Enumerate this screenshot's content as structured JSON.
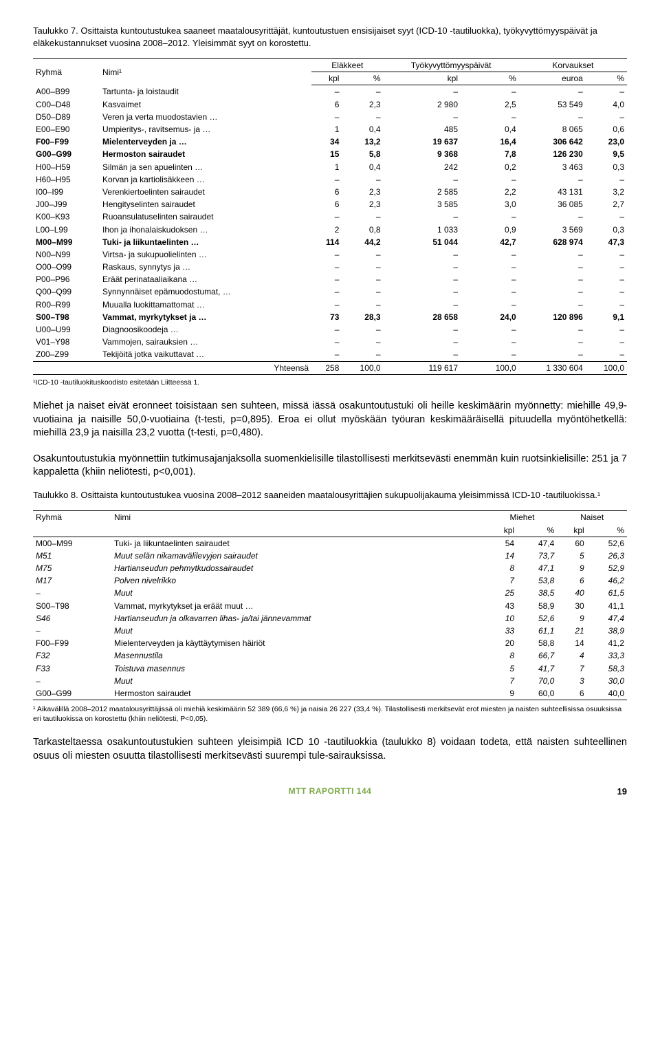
{
  "table7": {
    "caption": "Taulukko 7. Osittaista kuntoutustukea saaneet maatalousyrittäjät, kuntoutustuen ensisijaiset syyt (ICD-10 -tautiluokka), työkyvyttömyyspäivät ja eläkekustannukset vuosina 2008–2012. Yleisimmät syyt on korostettu.",
    "col_groups": [
      "Eläkkeet",
      "Työkyvyttömyyspäivät",
      "Korvaukset"
    ],
    "sub_cols": [
      "Ryhmä",
      "Nimi¹",
      "kpl",
      "%",
      "kpl",
      "%",
      "euroa",
      "%"
    ],
    "rows": [
      {
        "code": "A00–B99",
        "name": "Tartunta- ja loistaudit",
        "v": [
          "–",
          "–",
          "–",
          "–",
          "–",
          "–"
        ],
        "bold": false
      },
      {
        "code": "C00–D48",
        "name": "Kasvaimet",
        "v": [
          "6",
          "2,3",
          "2 980",
          "2,5",
          "53 549",
          "4,0"
        ],
        "bold": false
      },
      {
        "code": "D50–D89",
        "name": "Veren ja verta muodostavien …",
        "v": [
          "–",
          "–",
          "–",
          "–",
          "–",
          "–"
        ],
        "bold": false
      },
      {
        "code": "E00–E90",
        "name": "Umpieritys-, ravitsemus- ja …",
        "v": [
          "1",
          "0,4",
          "485",
          "0,4",
          "8 065",
          "0,6"
        ],
        "bold": false
      },
      {
        "code": "F00–F99",
        "name": "Mielenterveyden ja …",
        "v": [
          "34",
          "13,2",
          "19 637",
          "16,4",
          "306 642",
          "23,0"
        ],
        "bold": true
      },
      {
        "code": "G00–G99",
        "name": "Hermoston sairaudet",
        "v": [
          "15",
          "5,8",
          "9 368",
          "7,8",
          "126 230",
          "9,5"
        ],
        "bold": true
      },
      {
        "code": "H00–H59",
        "name": "Silmän ja sen apuelinten …",
        "v": [
          "1",
          "0,4",
          "242",
          "0,2",
          "3 463",
          "0,3"
        ],
        "bold": false
      },
      {
        "code": "H60–H95",
        "name": "Korvan ja kartiolisäkkeen …",
        "v": [
          "–",
          "–",
          "–",
          "–",
          "–",
          "–"
        ],
        "bold": false
      },
      {
        "code": "I00–I99",
        "name": "Verenkiertoelinten sairaudet",
        "v": [
          "6",
          "2,3",
          "2 585",
          "2,2",
          "43 131",
          "3,2"
        ],
        "bold": false
      },
      {
        "code": "J00–J99",
        "name": "Hengityselinten sairaudet",
        "v": [
          "6",
          "2,3",
          "3 585",
          "3,0",
          "36 085",
          "2,7"
        ],
        "bold": false
      },
      {
        "code": "K00–K93",
        "name": "Ruoansulatuselinten sairaudet",
        "v": [
          "–",
          "–",
          "–",
          "–",
          "–",
          "–"
        ],
        "bold": false
      },
      {
        "code": "L00–L99",
        "name": "Ihon ja ihonalaiskudoksen …",
        "v": [
          "2",
          "0,8",
          "1 033",
          "0,9",
          "3 569",
          "0,3"
        ],
        "bold": false
      },
      {
        "code": "M00–M99",
        "name": "Tuki- ja liikuntaelinten …",
        "v": [
          "114",
          "44,2",
          "51 044",
          "42,7",
          "628 974",
          "47,3"
        ],
        "bold": true
      },
      {
        "code": "N00–N99",
        "name": "Virtsa- ja sukupuolielinten …",
        "v": [
          "–",
          "–",
          "–",
          "–",
          "–",
          "–"
        ],
        "bold": false
      },
      {
        "code": "O00–O99",
        "name": "Raskaus, synnytys ja …",
        "v": [
          "–",
          "–",
          "–",
          "–",
          "–",
          "–"
        ],
        "bold": false
      },
      {
        "code": "P00–P96",
        "name": "Eräät perinataaliaikana …",
        "v": [
          "–",
          "–",
          "–",
          "–",
          "–",
          "–"
        ],
        "bold": false
      },
      {
        "code": "Q00–Q99",
        "name": "Synnynnäiset epämuodostumat, …",
        "v": [
          "–",
          "–",
          "–",
          "–",
          "–",
          "–"
        ],
        "bold": false
      },
      {
        "code": "R00–R99",
        "name": "Muualla luokittamattomat …",
        "v": [
          "–",
          "–",
          "–",
          "–",
          "–",
          "–"
        ],
        "bold": false
      },
      {
        "code": "S00–T98",
        "name": "Vammat, myrkytykset ja …",
        "v": [
          "73",
          "28,3",
          "28 658",
          "24,0",
          "120 896",
          "9,1"
        ],
        "bold": true
      },
      {
        "code": "U00–U99",
        "name": "Diagnoosikoodeja …",
        "v": [
          "–",
          "–",
          "–",
          "–",
          "–",
          "–"
        ],
        "bold": false
      },
      {
        "code": "V01–Y98",
        "name": "Vammojen, sairauksien …",
        "v": [
          "–",
          "–",
          "–",
          "–",
          "–",
          "–"
        ],
        "bold": false
      },
      {
        "code": "Z00–Z99",
        "name": "Tekijöitä jotka vaikuttavat …",
        "v": [
          "–",
          "–",
          "–",
          "–",
          "–",
          "–"
        ],
        "bold": false
      }
    ],
    "total": {
      "label": "Yhteensä",
      "v": [
        "258",
        "100,0",
        "119 617",
        "100,0",
        "1 330 604",
        "100,0"
      ]
    },
    "footnote": "¹ICD-10 -tautiluokituskoodisto esitetään Liitteessä 1."
  },
  "para1": "Miehet ja naiset eivät eronneet toisistaan sen suhteen, missä iässä osakuntoutustuki oli heille keskimäärin myönnetty: miehille 49,9-vuotiaina ja naisille 50,0-vuotiaina (t-testi, p=0,895). Eroa ei ollut myöskään työuran keskimääräisellä pituudella myöntöhetkellä: miehillä 23,9 ja naisilla 23,2 vuotta (t-testi, p=0,480).",
  "para2": "Osakuntoutustukia myönnettiin tutkimusajanjaksolla suomenkielisille tilastollisesti merkitsevästi enemmän kuin ruotsinkielisille: 251 ja 7 kappaletta (khiin neliötesti, p<0,001).",
  "table8": {
    "caption": "Taulukko 8. Osittaista kuntoutustukea vuosina 2008–2012 saaneiden maatalousyrittäjien sukupuolijakauma yleisimmissä ICD-10 -tautiluokissa.¹",
    "hdr1": [
      "Ryhmä",
      "Nimi",
      "Miehet",
      "Naiset"
    ],
    "hdr2": [
      "",
      "",
      "kpl",
      "%",
      "kpl",
      "%"
    ],
    "rows": [
      {
        "code": "M00–M99",
        "name": "Tuki- ja liikuntaelinten sairaudet",
        "v": [
          "54",
          "47,4",
          "60",
          "52,6"
        ],
        "italic": false,
        "indent": false
      },
      {
        "code": "M51",
        "name": "Muut selän nikamavälilevyjen sairaudet",
        "v": [
          "14",
          "73,7",
          "5",
          "26,3"
        ],
        "italic": true,
        "indent": true
      },
      {
        "code": "M75",
        "name": "Hartianseudun pehmytkudossairaudet",
        "v": [
          "8",
          "47,1",
          "9",
          "52,9"
        ],
        "italic": true,
        "indent": true
      },
      {
        "code": "M17",
        "name": "Polven nivelrikko",
        "v": [
          "7",
          "53,8",
          "6",
          "46,2"
        ],
        "italic": true,
        "indent": true
      },
      {
        "code": "–",
        "name": "Muut",
        "v": [
          "25",
          "38,5",
          "40",
          "61,5"
        ],
        "italic": true,
        "indent": true
      },
      {
        "code": "S00–T98",
        "name": "Vammat, myrkytykset ja eräät muut …",
        "v": [
          "43",
          "58,9",
          "30",
          "41,1"
        ],
        "italic": false,
        "indent": false
      },
      {
        "code": "S46",
        "name": "Hartianseudun ja olkavarren lihas- ja/tai jännevammat",
        "v": [
          "10",
          "52,6",
          "9",
          "47,4"
        ],
        "italic": true,
        "indent": true
      },
      {
        "code": "–",
        "name": "Muut",
        "v": [
          "33",
          "61,1",
          "21",
          "38,9"
        ],
        "italic": true,
        "indent": true
      },
      {
        "code": "F00–F99",
        "name": "Mielenterveyden ja käyttäytymisen häiriöt",
        "v": [
          "20",
          "58,8",
          "14",
          "41,2"
        ],
        "italic": false,
        "indent": false
      },
      {
        "code": "F32",
        "name": "Masennustila",
        "v": [
          "8",
          "66,7",
          "4",
          "33,3"
        ],
        "italic": true,
        "indent": true
      },
      {
        "code": "F33",
        "name": "Toistuva masennus",
        "v": [
          "5",
          "41,7",
          "7",
          "58,3"
        ],
        "italic": true,
        "indent": true
      },
      {
        "code": "–",
        "name": "Muut",
        "v": [
          "7",
          "70,0",
          "3",
          "30,0"
        ],
        "italic": true,
        "indent": true
      },
      {
        "code": "G00–G99",
        "name": "Hermoston sairaudet",
        "v": [
          "9",
          "60,0",
          "6",
          "40,0"
        ],
        "italic": false,
        "indent": false,
        "last": true
      }
    ],
    "footnote": "¹ Aikavälillä 2008–2012 maatalousyrittäjissä oli miehiä keskimäärin 52 389 (66,6 %) ja naisia 26 227 (33,4 %). Tilastollisesti merkitsevät erot miesten ja naisten suhteellisissa osuuksissa eri tautiluokissa on korostettu (khiin neliötesti, P<0,05)."
  },
  "para3": "Tarkasteltaessa osakuntoutustukien suhteen yleisimpiä ICD 10 -tautiluokkia (taulukko 8) voidaan todeta, että naisten suhteellinen osuus oli miesten osuutta tilastollisesti merkitsevästi suurempi tule-sairauksissa.",
  "footer": {
    "book": "MTT RAPORTTI 144",
    "page": "19"
  }
}
